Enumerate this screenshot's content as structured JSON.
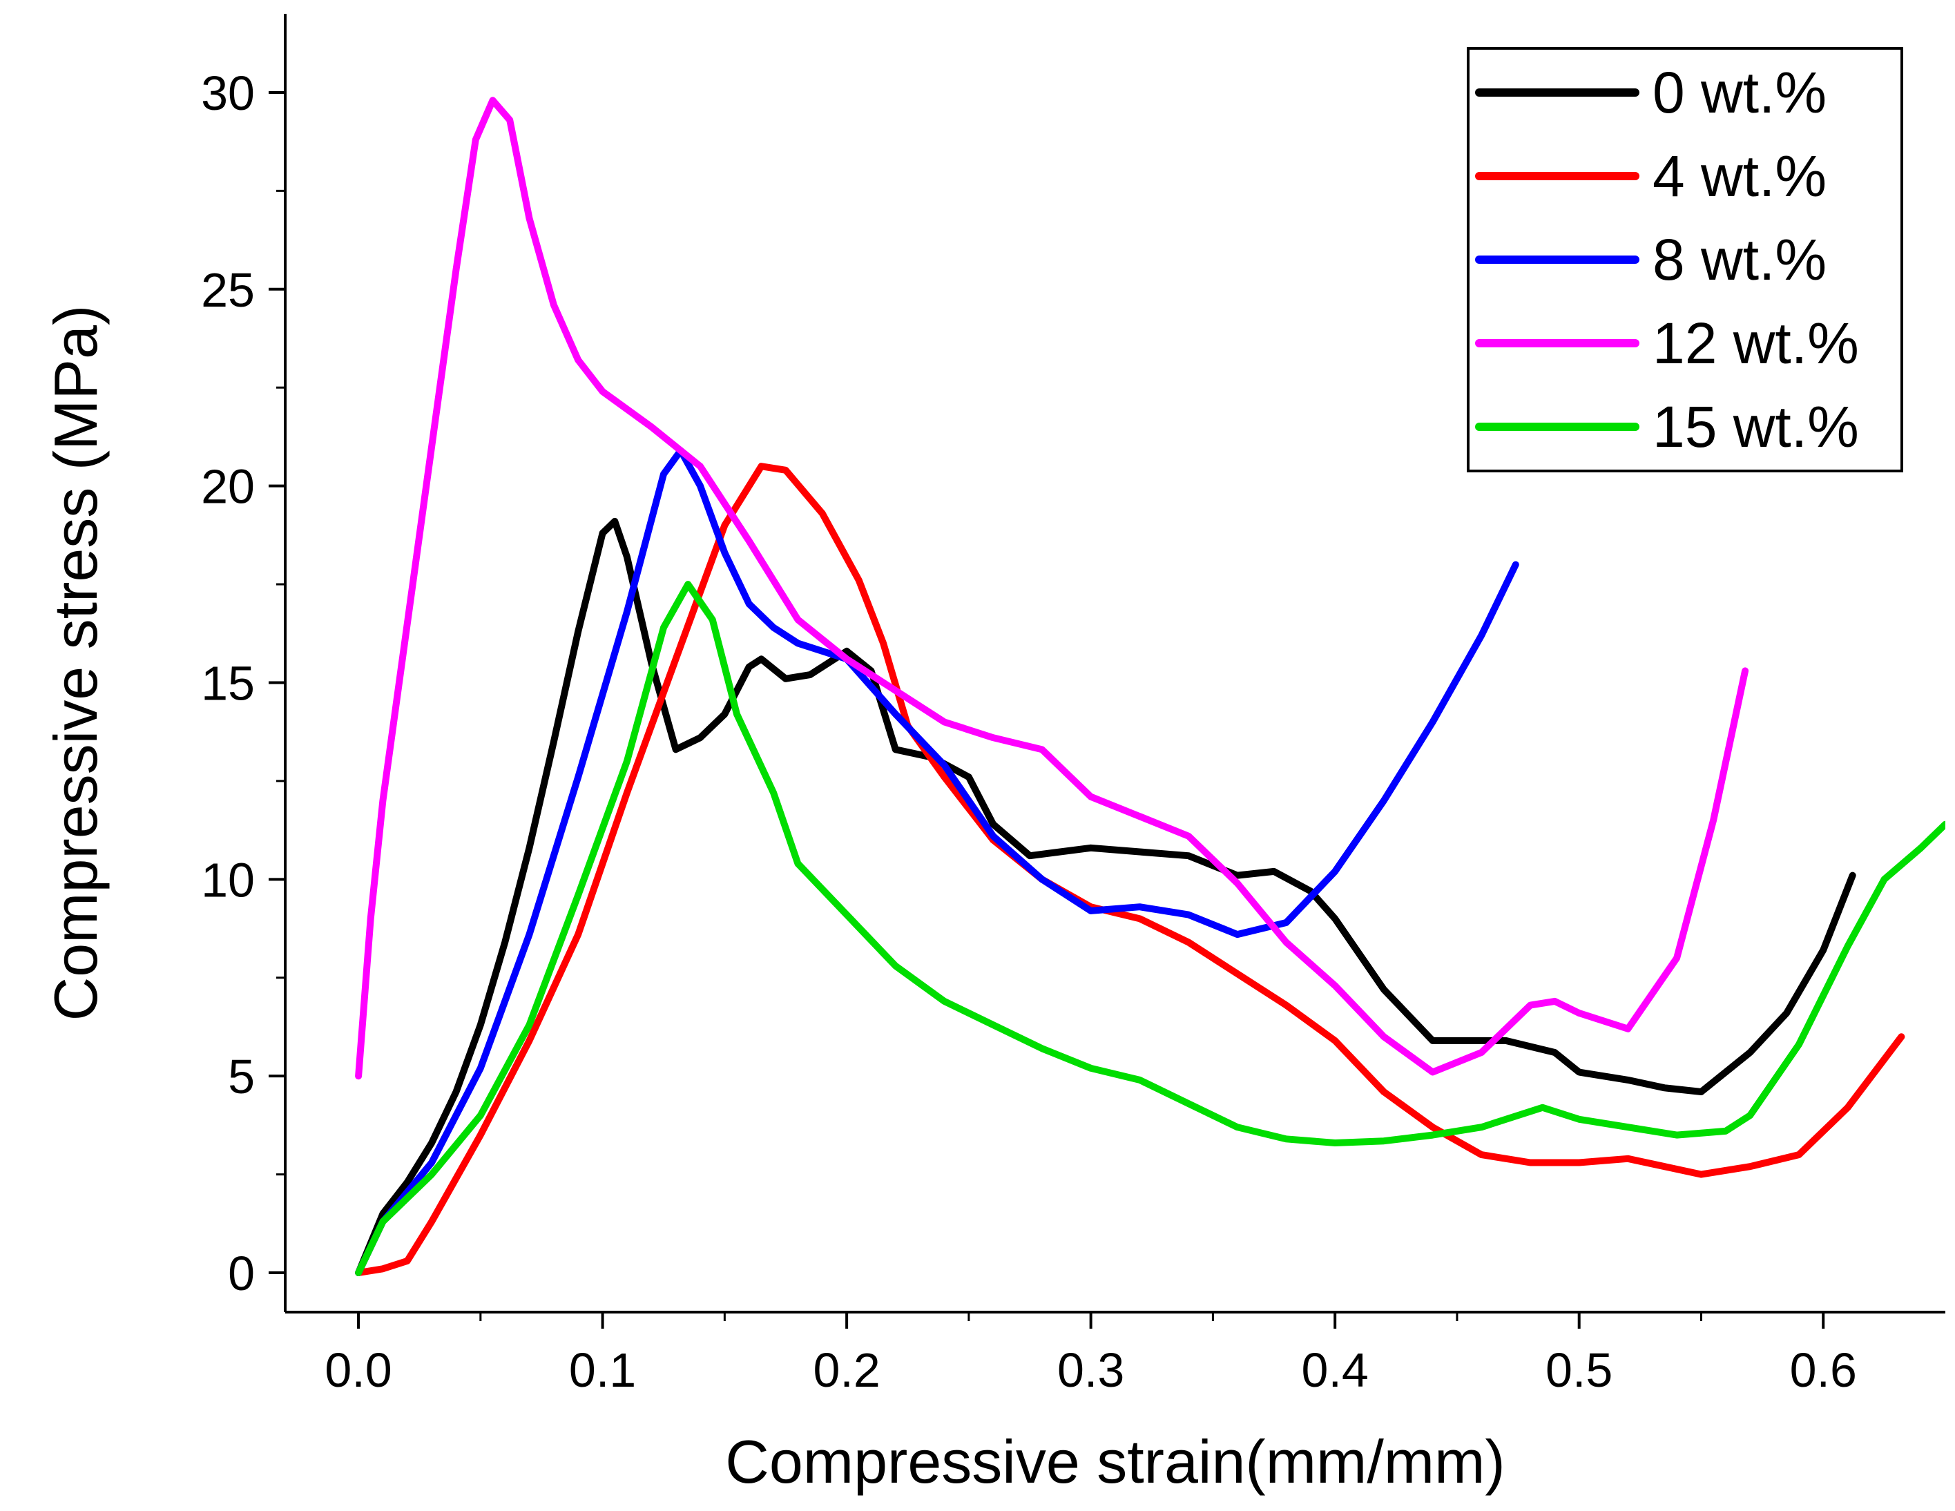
{
  "chart_data": {
    "type": "line",
    "xlabel": "Compressive strain(mm/mm)",
    "ylabel": "Compressive stress (MPa)",
    "xlim": [
      -0.03,
      0.65
    ],
    "ylim": [
      -1,
      32
    ],
    "xticks": [
      "0.0",
      "0.1",
      "0.2",
      "0.3",
      "0.4",
      "0.5",
      "0.6"
    ],
    "yticks": [
      "0",
      "5",
      "10",
      "15",
      "20",
      "25",
      "30"
    ],
    "legend_position": "top-right",
    "series": [
      {
        "name": "0 wt.%",
        "color": "#000000",
        "points": [
          [
            0,
            0
          ],
          [
            0.01,
            1.5
          ],
          [
            0.02,
            2.3
          ],
          [
            0.03,
            3.3
          ],
          [
            0.04,
            4.6
          ],
          [
            0.05,
            6.3
          ],
          [
            0.06,
            8.4
          ],
          [
            0.07,
            10.8
          ],
          [
            0.08,
            13.5
          ],
          [
            0.09,
            16.3
          ],
          [
            0.1,
            18.8
          ],
          [
            0.105,
            19.1
          ],
          [
            0.11,
            18.2
          ],
          [
            0.12,
            15.5
          ],
          [
            0.13,
            13.3
          ],
          [
            0.14,
            13.6
          ],
          [
            0.15,
            14.2
          ],
          [
            0.16,
            15.4
          ],
          [
            0.165,
            15.6
          ],
          [
            0.175,
            15.1
          ],
          [
            0.185,
            15.2
          ],
          [
            0.2,
            15.8
          ],
          [
            0.21,
            15.3
          ],
          [
            0.22,
            13.3
          ],
          [
            0.235,
            13.1
          ],
          [
            0.25,
            12.6
          ],
          [
            0.26,
            11.4
          ],
          [
            0.275,
            10.6
          ],
          [
            0.3,
            10.8
          ],
          [
            0.32,
            10.7
          ],
          [
            0.34,
            10.6
          ],
          [
            0.36,
            10.1
          ],
          [
            0.375,
            10.2
          ],
          [
            0.39,
            9.7
          ],
          [
            0.4,
            9.0
          ],
          [
            0.42,
            7.2
          ],
          [
            0.44,
            5.9
          ],
          [
            0.47,
            5.9
          ],
          [
            0.49,
            5.6
          ],
          [
            0.5,
            5.1
          ],
          [
            0.52,
            4.9
          ],
          [
            0.535,
            4.7
          ],
          [
            0.55,
            4.6
          ],
          [
            0.57,
            5.6
          ],
          [
            0.585,
            6.6
          ],
          [
            0.6,
            8.2
          ],
          [
            0.612,
            10.1
          ]
        ]
      },
      {
        "name": "4 wt.%",
        "color": "#ff0000",
        "points": [
          [
            0,
            0
          ],
          [
            0.01,
            0.1
          ],
          [
            0.02,
            0.3
          ],
          [
            0.03,
            1.3
          ],
          [
            0.05,
            3.5
          ],
          [
            0.07,
            5.9
          ],
          [
            0.09,
            8.6
          ],
          [
            0.11,
            12.2
          ],
          [
            0.13,
            15.6
          ],
          [
            0.15,
            19.0
          ],
          [
            0.165,
            20.5
          ],
          [
            0.175,
            20.4
          ],
          [
            0.19,
            19.3
          ],
          [
            0.205,
            17.6
          ],
          [
            0.215,
            16.0
          ],
          [
            0.225,
            13.9
          ],
          [
            0.24,
            12.6
          ],
          [
            0.26,
            11.0
          ],
          [
            0.28,
            10.0
          ],
          [
            0.3,
            9.3
          ],
          [
            0.32,
            9.0
          ],
          [
            0.34,
            8.4
          ],
          [
            0.36,
            7.6
          ],
          [
            0.38,
            6.8
          ],
          [
            0.4,
            5.9
          ],
          [
            0.42,
            4.6
          ],
          [
            0.44,
            3.7
          ],
          [
            0.46,
            3.0
          ],
          [
            0.48,
            2.8
          ],
          [
            0.5,
            2.8
          ],
          [
            0.52,
            2.9
          ],
          [
            0.535,
            2.7
          ],
          [
            0.55,
            2.5
          ],
          [
            0.57,
            2.7
          ],
          [
            0.59,
            3.0
          ],
          [
            0.61,
            4.2
          ],
          [
            0.632,
            6.0
          ]
        ]
      },
      {
        "name": "8 wt.%",
        "color": "#0000ff",
        "points": [
          [
            0,
            0
          ],
          [
            0.01,
            1.3
          ],
          [
            0.03,
            2.8
          ],
          [
            0.05,
            5.2
          ],
          [
            0.07,
            8.6
          ],
          [
            0.09,
            12.6
          ],
          [
            0.11,
            16.8
          ],
          [
            0.125,
            20.3
          ],
          [
            0.132,
            20.9
          ],
          [
            0.14,
            20.0
          ],
          [
            0.15,
            18.3
          ],
          [
            0.16,
            17.0
          ],
          [
            0.17,
            16.4
          ],
          [
            0.18,
            16.0
          ],
          [
            0.2,
            15.6
          ],
          [
            0.22,
            14.2
          ],
          [
            0.24,
            12.9
          ],
          [
            0.26,
            11.1
          ],
          [
            0.28,
            10.0
          ],
          [
            0.3,
            9.2
          ],
          [
            0.32,
            9.3
          ],
          [
            0.34,
            9.1
          ],
          [
            0.36,
            8.6
          ],
          [
            0.38,
            8.9
          ],
          [
            0.4,
            10.2
          ],
          [
            0.42,
            12.0
          ],
          [
            0.44,
            14.0
          ],
          [
            0.46,
            16.2
          ],
          [
            0.474,
            18.0
          ]
        ]
      },
      {
        "name": "12 wt.%",
        "color": "#ff00ff",
        "points": [
          [
            0,
            5.0
          ],
          [
            0.005,
            9.0
          ],
          [
            0.01,
            12.0
          ],
          [
            0.02,
            16.5
          ],
          [
            0.03,
            21.0
          ],
          [
            0.04,
            25.5
          ],
          [
            0.048,
            28.8
          ],
          [
            0.055,
            29.8
          ],
          [
            0.062,
            29.3
          ],
          [
            0.07,
            26.8
          ],
          [
            0.08,
            24.6
          ],
          [
            0.09,
            23.2
          ],
          [
            0.1,
            22.4
          ],
          [
            0.12,
            21.5
          ],
          [
            0.14,
            20.5
          ],
          [
            0.16,
            18.6
          ],
          [
            0.18,
            16.6
          ],
          [
            0.2,
            15.6
          ],
          [
            0.22,
            14.8
          ],
          [
            0.24,
            14.0
          ],
          [
            0.26,
            13.6
          ],
          [
            0.28,
            13.3
          ],
          [
            0.3,
            12.1
          ],
          [
            0.32,
            11.6
          ],
          [
            0.34,
            11.1
          ],
          [
            0.36,
            9.9
          ],
          [
            0.38,
            8.4
          ],
          [
            0.4,
            7.3
          ],
          [
            0.42,
            6.0
          ],
          [
            0.44,
            5.1
          ],
          [
            0.46,
            5.6
          ],
          [
            0.48,
            6.8
          ],
          [
            0.49,
            6.9
          ],
          [
            0.5,
            6.6
          ],
          [
            0.52,
            6.2
          ],
          [
            0.54,
            8.0
          ],
          [
            0.555,
            11.5
          ],
          [
            0.568,
            15.3
          ]
        ]
      },
      {
        "name": "15 wt.%",
        "color": "#00dd00",
        "points": [
          [
            0,
            0
          ],
          [
            0.01,
            1.3
          ],
          [
            0.03,
            2.5
          ],
          [
            0.05,
            4.0
          ],
          [
            0.07,
            6.3
          ],
          [
            0.09,
            9.6
          ],
          [
            0.11,
            13.0
          ],
          [
            0.125,
            16.4
          ],
          [
            0.135,
            17.5
          ],
          [
            0.145,
            16.6
          ],
          [
            0.155,
            14.2
          ],
          [
            0.17,
            12.2
          ],
          [
            0.18,
            10.4
          ],
          [
            0.2,
            9.1
          ],
          [
            0.22,
            7.8
          ],
          [
            0.24,
            6.9
          ],
          [
            0.26,
            6.3
          ],
          [
            0.28,
            5.7
          ],
          [
            0.3,
            5.2
          ],
          [
            0.32,
            4.9
          ],
          [
            0.34,
            4.3
          ],
          [
            0.36,
            3.7
          ],
          [
            0.38,
            3.4
          ],
          [
            0.4,
            3.3
          ],
          [
            0.42,
            3.35
          ],
          [
            0.44,
            3.5
          ],
          [
            0.46,
            3.7
          ],
          [
            0.485,
            4.2
          ],
          [
            0.5,
            3.9
          ],
          [
            0.52,
            3.7
          ],
          [
            0.54,
            3.5
          ],
          [
            0.56,
            3.6
          ],
          [
            0.57,
            4.0
          ],
          [
            0.59,
            5.8
          ],
          [
            0.61,
            8.3
          ],
          [
            0.625,
            10.0
          ],
          [
            0.64,
            10.8
          ],
          [
            0.65,
            11.4
          ]
        ]
      }
    ]
  }
}
